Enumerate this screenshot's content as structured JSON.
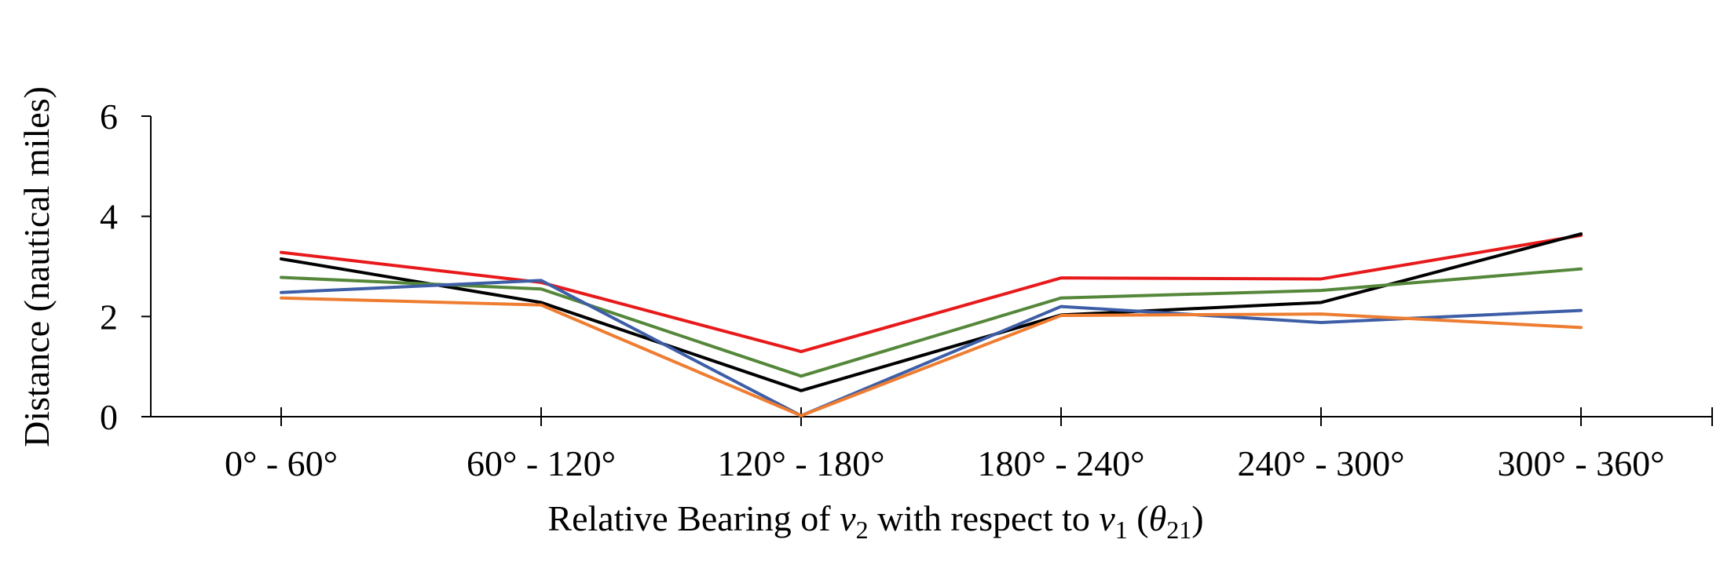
{
  "chart_data": {
    "type": "line",
    "categories": [
      "0° - 60°",
      "60° - 120°",
      "120° - 180°",
      "180° - 240°",
      "240° - 300°",
      "300° - 360°"
    ],
    "xlabel": {
      "prefix": "Relative Bearing of ",
      "v2_base": "v",
      "v2_sub": "2",
      "mid": " with respect to ",
      "v1_base": "v",
      "v1_sub": "1",
      "paren_open": " (",
      "theta_base": "θ",
      "theta_sub": "21",
      "paren_close": ")"
    },
    "ylabel": "Distance (nautical miles)",
    "ylim": [
      0,
      6
    ],
    "yticks": [
      "0",
      "2",
      "4",
      "6"
    ],
    "grid": false,
    "series": [
      {
        "color": "#e8191b",
        "values": [
          3.28,
          2.68,
          1.3,
          2.77,
          2.75,
          3.62
        ]
      },
      {
        "color": "#000000",
        "values": [
          3.15,
          2.28,
          0.52,
          2.03,
          2.28,
          3.65
        ]
      },
      {
        "color": "#55873a",
        "values": [
          2.78,
          2.55,
          0.81,
          2.37,
          2.52,
          2.95
        ]
      },
      {
        "color": "#3d5ea6",
        "values": [
          2.48,
          2.72,
          0.02,
          2.2,
          1.88,
          2.12
        ]
      },
      {
        "color": "#ee7d31",
        "values": [
          2.37,
          2.23,
          0.02,
          2.02,
          2.05,
          1.78
        ]
      }
    ]
  }
}
